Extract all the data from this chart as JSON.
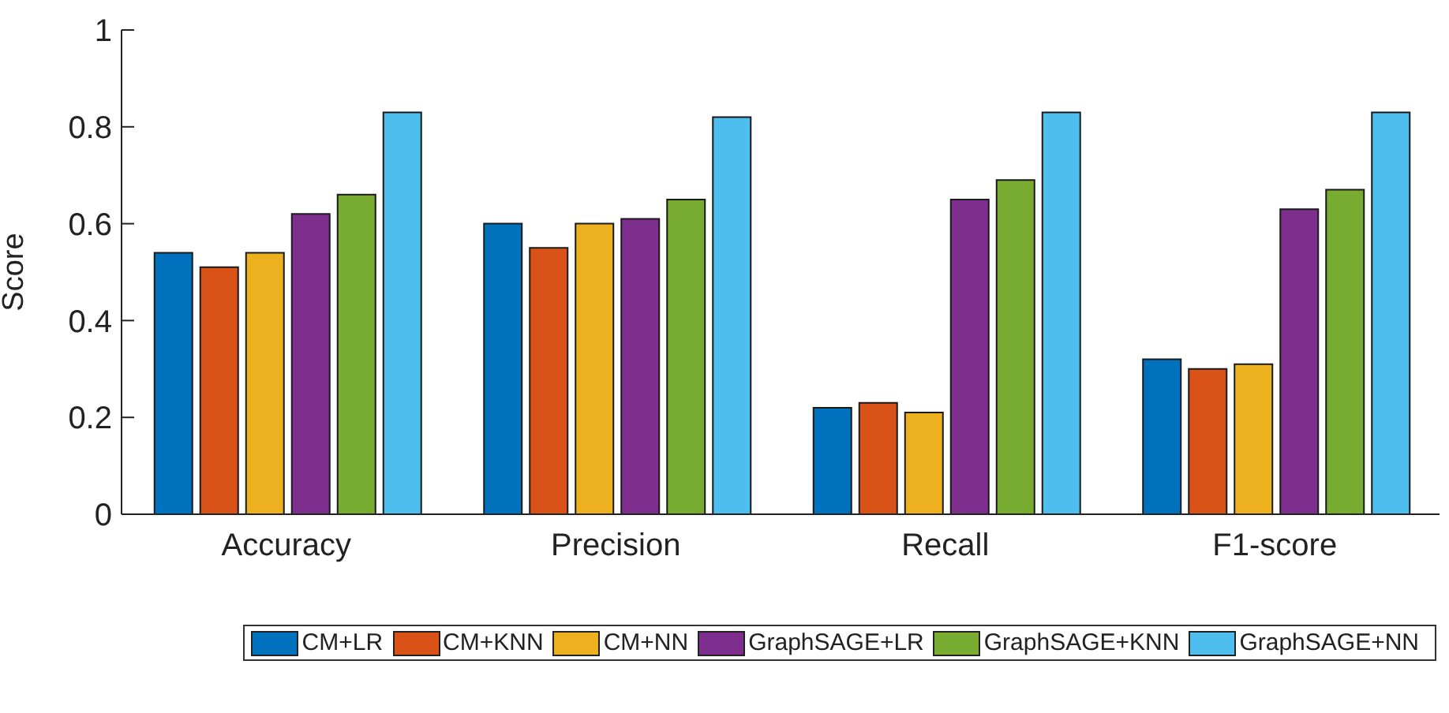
{
  "chart_data": {
    "type": "bar",
    "ylabel": "Score",
    "categories": [
      "Accuracy",
      "Precision",
      "Recall",
      "F1-score"
    ],
    "series": [
      {
        "name": "CM+LR",
        "color": "#0072bd",
        "values": [
          0.54,
          0.6,
          0.22,
          0.32
        ]
      },
      {
        "name": "CM+KNN",
        "color": "#d95319",
        "values": [
          0.51,
          0.55,
          0.23,
          0.3
        ]
      },
      {
        "name": "CM+NN",
        "color": "#edb120",
        "values": [
          0.54,
          0.6,
          0.21,
          0.31
        ]
      },
      {
        "name": "GraphSAGE+LR",
        "color": "#7e2f8e",
        "values": [
          0.62,
          0.61,
          0.65,
          0.63
        ]
      },
      {
        "name": "GraphSAGE+KNN",
        "color": "#77ac30",
        "values": [
          0.66,
          0.65,
          0.69,
          0.67
        ]
      },
      {
        "name": "GraphSAGE+NN",
        "color": "#4dbeee",
        "values": [
          0.83,
          0.82,
          0.83,
          0.83
        ]
      }
    ],
    "ylim": [
      0,
      1
    ],
    "yticks": [
      0,
      0.2,
      0.4,
      0.6,
      0.8,
      1
    ],
    "grid": false,
    "legend": "bottom"
  }
}
